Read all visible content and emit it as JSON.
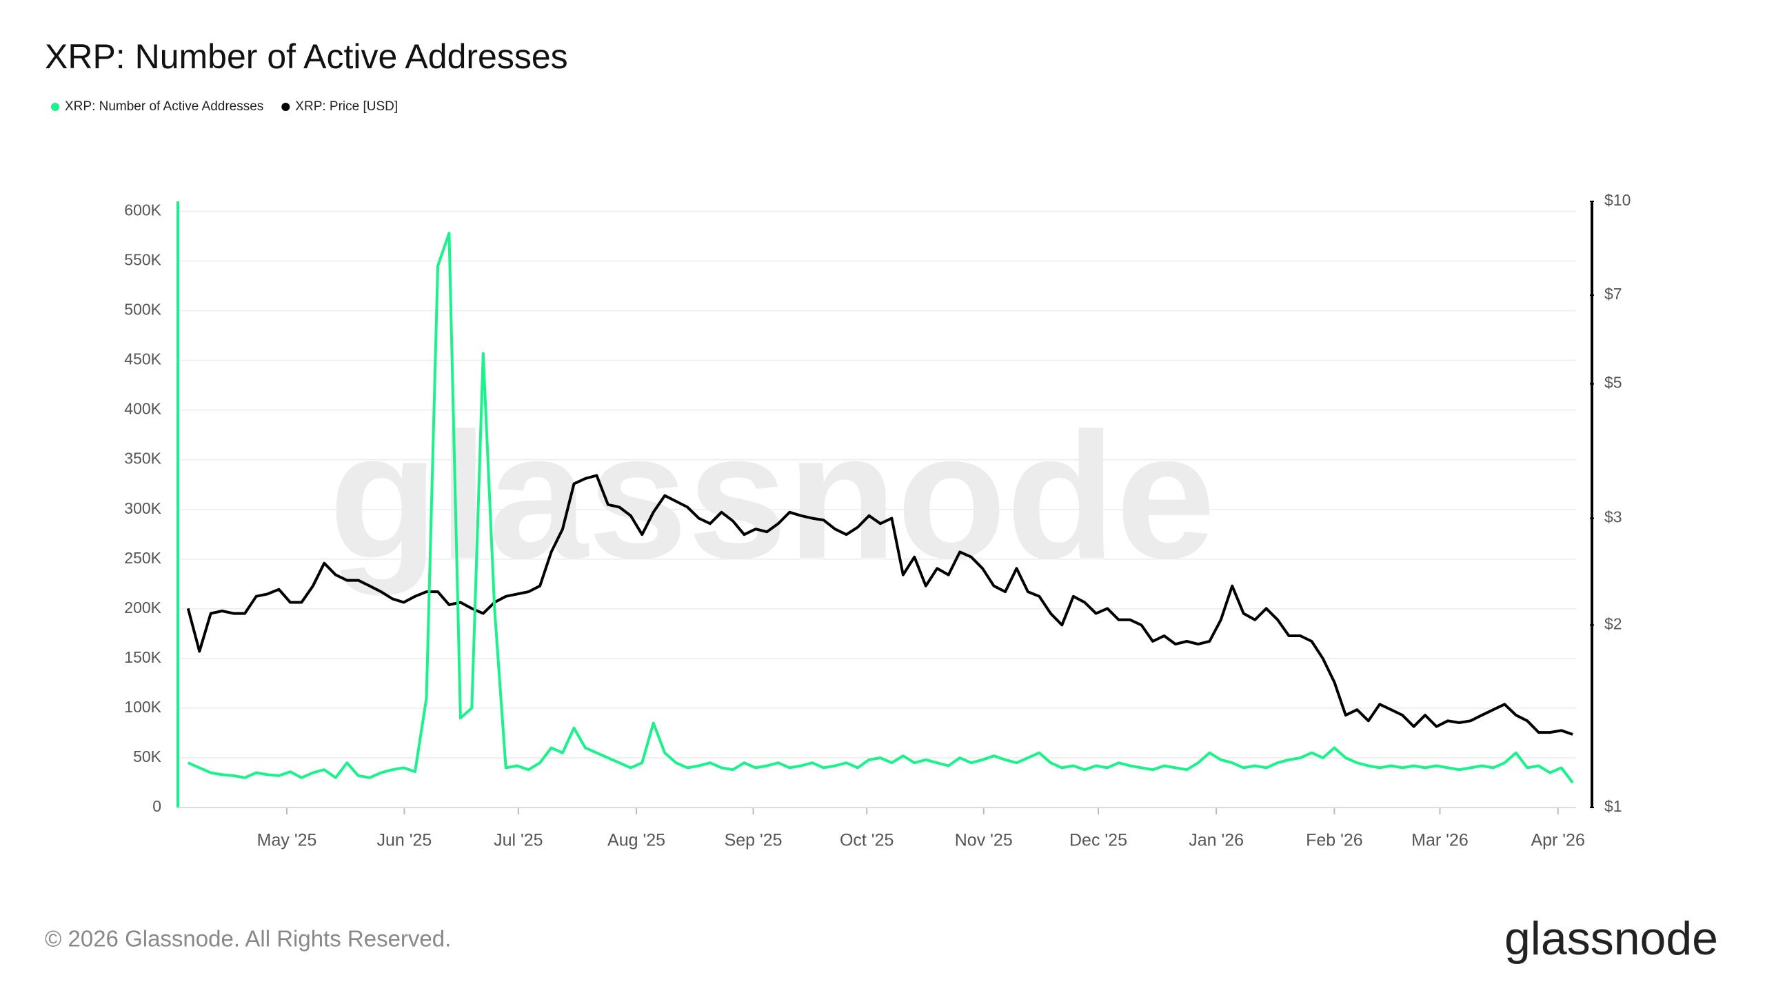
{
  "chart_data": {
    "type": "line",
    "title": "XRP: Number of Active Addresses",
    "watermark": "glassnode",
    "ylim": [
      0,
      610000
    ],
    "yticks": [
      0,
      {
        "value": 50000,
        "label": "50K"
      },
      {
        "value": 100000,
        "label": "100K"
      },
      {
        "value": 150000,
        "label": "150K"
      },
      {
        "value": 200000,
        "label": "200K"
      },
      {
        "value": 250000,
        "label": "250K"
      },
      {
        "value": 300000,
        "label": "300K"
      },
      {
        "value": 350000,
        "label": "350K"
      },
      {
        "value": 400000,
        "label": "400K"
      },
      {
        "value": 450000,
        "label": "450K"
      },
      {
        "value": 500000,
        "label": "500K"
      },
      {
        "value": 550000,
        "label": "550K"
      },
      {
        "value": 600000,
        "label": "600K"
      }
    ],
    "y2lim": [
      1,
      10
    ],
    "y2scale": "log",
    "y2ticks": [
      {
        "value": 1,
        "label": "$1"
      },
      {
        "value": 2,
        "label": "$2"
      },
      {
        "value": 3,
        "label": "$3"
      },
      {
        "value": 5,
        "label": "$5"
      },
      {
        "value": 7,
        "label": "$7"
      },
      {
        "value": 10,
        "label": "$10"
      }
    ],
    "xlim": [
      -0.9,
      122.3
    ],
    "xticks": [
      {
        "value": 8.7,
        "label": "May '25"
      },
      {
        "value": 19.05,
        "label": "Jun '25"
      },
      {
        "value": 29.1,
        "label": "Jul '25"
      },
      {
        "value": 39.5,
        "label": "Aug '25"
      },
      {
        "value": 49.8,
        "label": "Sep '25"
      },
      {
        "value": 59.8,
        "label": "Oct '25"
      },
      {
        "value": 70.1,
        "label": "Nov '25"
      },
      {
        "value": 80.2,
        "label": "Dec '25"
      },
      {
        "value": 90.6,
        "label": "Jan '26"
      },
      {
        "value": 101.0,
        "label": "Feb '26"
      },
      {
        "value": 110.3,
        "label": "Mar '26"
      },
      {
        "value": 120.7,
        "label": "Apr '26"
      }
    ],
    "grid": true,
    "series": [
      {
        "name": "XRP: Number of Active Addresses",
        "color": "#1cf28c",
        "axis": "y",
        "values": [
          45000,
          40000,
          35000,
          33000,
          32000,
          30000,
          35000,
          33000,
          32000,
          36000,
          30000,
          35000,
          38000,
          30000,
          45000,
          32000,
          30000,
          35000,
          38000,
          40000,
          36000,
          110000,
          545000,
          578000,
          90000,
          100000,
          457000,
          200000,
          40000,
          42000,
          38000,
          45000,
          60000,
          55000,
          80000,
          60000,
          55000,
          50000,
          45000,
          40000,
          45000,
          85000,
          55000,
          45000,
          40000,
          42000,
          45000,
          40000,
          38000,
          45000,
          40000,
          42000,
          45000,
          40000,
          42000,
          45000,
          40000,
          42000,
          45000,
          40000,
          48000,
          50000,
          45000,
          52000,
          45000,
          48000,
          45000,
          42000,
          50000,
          45000,
          48000,
          52000,
          48000,
          45000,
          50000,
          55000,
          45000,
          40000,
          42000,
          38000,
          42000,
          40000,
          45000,
          42000,
          40000,
          38000,
          42000,
          40000,
          38000,
          45000,
          55000,
          48000,
          45000,
          40000,
          42000,
          40000,
          45000,
          48000,
          50000,
          55000,
          50000,
          60000,
          50000,
          45000,
          42000,
          40000,
          42000,
          40000,
          42000,
          40000,
          42000,
          40000,
          38000,
          40000,
          42000,
          40000,
          45000,
          55000,
          40000,
          42000,
          35000,
          40000,
          25000
        ]
      },
      {
        "name": "XRP: Price [USD]",
        "color": "#000000",
        "axis": "y2",
        "values": [
          2.13,
          1.81,
          2.09,
          2.11,
          2.09,
          2.09,
          2.23,
          2.25,
          2.29,
          2.18,
          2.18,
          2.32,
          2.53,
          2.42,
          2.37,
          2.37,
          2.32,
          2.27,
          2.21,
          2.18,
          2.23,
          2.27,
          2.27,
          2.16,
          2.18,
          2.13,
          2.09,
          2.18,
          2.23,
          2.25,
          2.27,
          2.32,
          2.64,
          2.88,
          3.42,
          3.49,
          3.53,
          3.16,
          3.13,
          3.03,
          2.82,
          3.07,
          3.27,
          3.2,
          3.13,
          3.0,
          2.94,
          3.07,
          2.97,
          2.82,
          2.88,
          2.85,
          2.94,
          3.07,
          3.03,
          3.0,
          2.98,
          2.88,
          2.82,
          2.9,
          3.03,
          2.94,
          3.0,
          2.42,
          2.59,
          2.32,
          2.48,
          2.42,
          2.64,
          2.59,
          2.48,
          2.32,
          2.27,
          2.48,
          2.27,
          2.23,
          2.09,
          2.0,
          2.23,
          2.18,
          2.09,
          2.13,
          2.04,
          2.04,
          2.0,
          1.88,
          1.92,
          1.86,
          1.88,
          1.86,
          1.88,
          2.04,
          2.32,
          2.09,
          2.04,
          2.13,
          2.04,
          1.92,
          1.92,
          1.88,
          1.76,
          1.61,
          1.42,
          1.45,
          1.39,
          1.48,
          1.45,
          1.42,
          1.36,
          1.42,
          1.36,
          1.39,
          1.38,
          1.39,
          1.42,
          1.45,
          1.48,
          1.42,
          1.39,
          1.33,
          1.33,
          1.34,
          1.32
        ]
      }
    ]
  },
  "footer": {
    "copyright": "© 2026 Glassnode. All Rights Reserved.",
    "logo": "glassnode"
  }
}
